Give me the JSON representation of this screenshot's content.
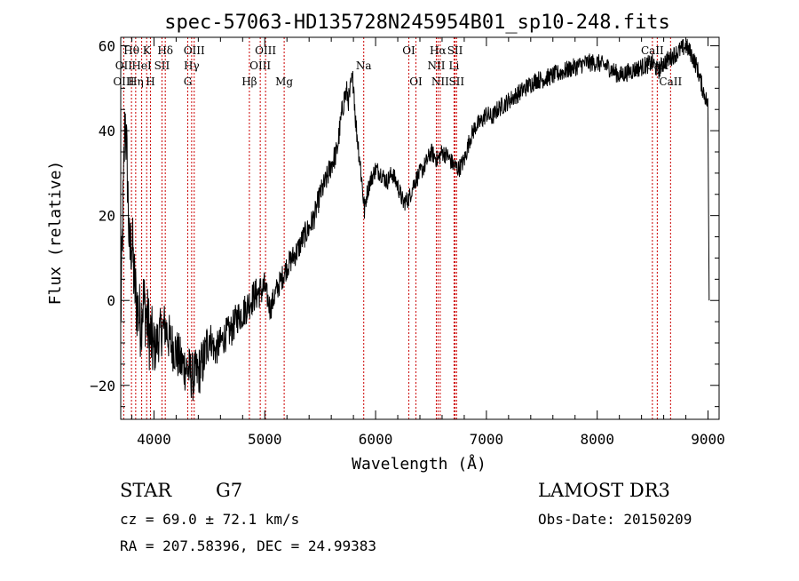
{
  "chart_data": {
    "type": "line",
    "title": "spec-57063-HD135728N245954B01_sp10-248.fits",
    "xlabel": "Wavelength (Å)",
    "ylabel": "Flux (relative)",
    "xlim": [
      3700,
      9100
    ],
    "ylim": [
      -28,
      62
    ],
    "xticks": [
      4000,
      5000,
      6000,
      7000,
      8000,
      9000
    ],
    "yticks": [
      -20,
      0,
      20,
      40,
      60
    ],
    "grid": false,
    "series": [
      {
        "x": [
          3700,
          3720,
          3740,
          3760,
          3780,
          3800,
          3820,
          3840,
          3860,
          3880,
          3900,
          3920,
          3940,
          3960,
          3980,
          4000,
          4050,
          4100,
          4150,
          4200,
          4250,
          4300,
          4350,
          4400,
          4450,
          4500,
          4550,
          4600,
          4650,
          4700,
          4750,
          4800,
          4850,
          4900,
          4950,
          5000,
          5050,
          5100,
          5150,
          5200,
          5250,
          5300,
          5350,
          5400,
          5450,
          5500,
          5550,
          5600,
          5650,
          5700,
          5720,
          5740,
          5760,
          5780,
          5800,
          5820,
          5850,
          5870,
          5900,
          5920,
          5950,
          6000,
          6050,
          6100,
          6150,
          6200,
          6250,
          6300,
          6350,
          6400,
          6450,
          6500,
          6530,
          6560,
          6600,
          6650,
          6700,
          6750,
          6800,
          6850,
          6900,
          6950,
          7000,
          7050,
          7100,
          7150,
          7200,
          7250,
          7300,
          7350,
          7400,
          7450,
          7500,
          7600,
          7700,
          7800,
          7900,
          8000,
          8100,
          8200,
          8300,
          8400,
          8500,
          8550,
          8600,
          8650,
          8700,
          8750,
          8800,
          8850,
          8900,
          8950,
          9000,
          9010
        ],
        "y": [
          -5,
          20,
          44,
          30,
          10,
          15,
          5,
          0,
          -3,
          -5,
          0,
          -2,
          -5,
          -8,
          -10,
          -12,
          -8,
          -6,
          -10,
          -12,
          -15,
          -16,
          -18,
          -17,
          -14,
          -8,
          -12,
          -10,
          -8,
          -7,
          -4,
          -3,
          -1,
          1,
          2,
          3,
          -2,
          2,
          5,
          8,
          10,
          12,
          15,
          17,
          20,
          25,
          28,
          32,
          35,
          45,
          48,
          49,
          47,
          51,
          52,
          42,
          35,
          30,
          21,
          25,
          28,
          31,
          30,
          28,
          30,
          27,
          23,
          24,
          28,
          30,
          32,
          35,
          34,
          33,
          35,
          34,
          32,
          31,
          33,
          38,
          41,
          42,
          44,
          43,
          45,
          46,
          47,
          48,
          49,
          50,
          51,
          52,
          52,
          53,
          54,
          55,
          56,
          56,
          55,
          53,
          54,
          55,
          56,
          54,
          56,
          57,
          58,
          59,
          60,
          58,
          55,
          50,
          46,
          0
        ]
      }
    ],
    "line_labels": [
      {
        "text": "Hθ",
        "wavelength": 3797,
        "row": 1
      },
      {
        "text": "OII",
        "wavelength": 3727,
        "row": 2
      },
      {
        "text": "OIII",
        "wavelength": 3727,
        "row": 3
      },
      {
        "text": "K",
        "wavelength": 3934,
        "row": 1
      },
      {
        "text": "HeI",
        "wavelength": 3889,
        "row": 2
      },
      {
        "text": "Hη",
        "wavelength": 3835,
        "row": 3
      },
      {
        "text": "Hδ",
        "wavelength": 4102,
        "row": 1
      },
      {
        "text": "SII",
        "wavelength": 4072,
        "row": 2
      },
      {
        "text": "H",
        "wavelength": 3968,
        "row": 3
      },
      {
        "text": "OIII",
        "wavelength": 4363,
        "row": 1
      },
      {
        "text": "Hγ",
        "wavelength": 4340,
        "row": 2
      },
      {
        "text": "G",
        "wavelength": 4305,
        "row": 3
      },
      {
        "text": "OIII",
        "wavelength": 5007,
        "row": 1
      },
      {
        "text": "OIII",
        "wavelength": 4959,
        "row": 2
      },
      {
        "text": "Hβ",
        "wavelength": 4861,
        "row": 3
      },
      {
        "text": "Mg",
        "wavelength": 5175,
        "row": 3
      },
      {
        "text": "Na",
        "wavelength": 5893,
        "row": 2
      },
      {
        "text": "OI",
        "wavelength": 6300,
        "row": 1
      },
      {
        "text": "OI",
        "wavelength": 6364,
        "row": 3
      },
      {
        "text": "Hα",
        "wavelength": 6563,
        "row": 1
      },
      {
        "text": "NII",
        "wavelength": 6548,
        "row": 2
      },
      {
        "text": "NII",
        "wavelength": 6583,
        "row": 3
      },
      {
        "text": "SII",
        "wavelength": 6717,
        "row": 1
      },
      {
        "text": "Li",
        "wavelength": 6708,
        "row": 2
      },
      {
        "text": "SII",
        "wavelength": 6731,
        "row": 3
      },
      {
        "text": "CaII",
        "wavelength": 8498,
        "row": 1
      },
      {
        "text": "CaII",
        "wavelength": 8542,
        "row": 2
      },
      {
        "text": "CaII",
        "wavelength": 8662,
        "row": 3
      }
    ],
    "marker_lines": [
      3727,
      3797,
      3835,
      3889,
      3934,
      3968,
      4072,
      4102,
      4305,
      4340,
      4363,
      4861,
      4959,
      5007,
      5175,
      5893,
      6300,
      6364,
      6548,
      6563,
      6583,
      6708,
      6717,
      6731,
      8498,
      8542,
      8662
    ],
    "marker_color": "#cc0000"
  },
  "info": {
    "object_type": "STAR",
    "subclass": "G7",
    "survey": "LAMOST DR3",
    "redshift": "cz = 69.0 ± 72.1 km/s",
    "obs_date": "Obs-Date: 20150209",
    "coords": "RA = 207.58396, DEC =  24.99383"
  }
}
